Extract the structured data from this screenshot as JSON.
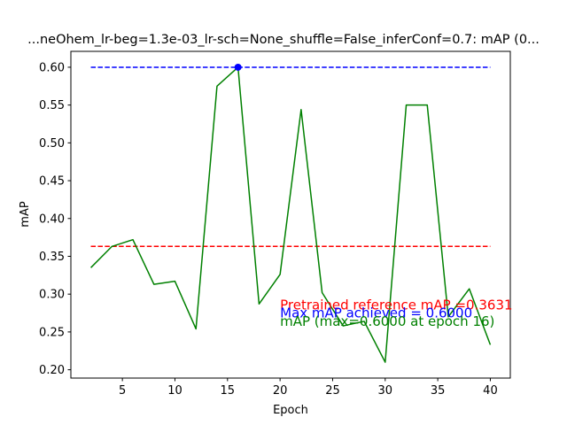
{
  "chart_data": {
    "type": "line",
    "title": "...neOhem_lr-beg=1.3e-03_lr-sch=None_shuffle=False_inferConf=0.7:  mAP (0...",
    "xlabel": "Epoch",
    "ylabel": "mAP",
    "xlim": [
      0.1,
      41.9
    ],
    "ylim": [
      0.189,
      0.621
    ],
    "xticks": [
      5,
      10,
      15,
      20,
      25,
      30,
      35,
      40
    ],
    "yticks": [
      0.2,
      0.25,
      0.3,
      0.35,
      0.4,
      0.45,
      0.5,
      0.55,
      0.6
    ],
    "xtick_labels": [
      "5",
      "10",
      "15",
      "20",
      "25",
      "30",
      "35",
      "40"
    ],
    "ytick_labels": [
      "0.20",
      "0.25",
      "0.30",
      "0.35",
      "0.40",
      "0.45",
      "0.50",
      "0.55",
      "0.60"
    ],
    "grid": false,
    "series": [
      {
        "color": "#008000",
        "style": "solid",
        "x": [
          2,
          4,
          6,
          8,
          10,
          12,
          14,
          16,
          18,
          20,
          22,
          24,
          26,
          28,
          30,
          32,
          34,
          36,
          38,
          40
        ],
        "y": [
          0.335,
          0.363,
          0.372,
          0.313,
          0.317,
          0.254,
          0.575,
          0.6,
          0.287,
          0.326,
          0.544,
          0.302,
          0.258,
          0.264,
          0.21,
          0.55,
          0.55,
          0.27,
          0.307,
          0.233
        ]
      }
    ],
    "reference_lines": [
      {
        "y": 0.3631,
        "x_start": 2,
        "x_end": 40,
        "color": "#ff0000",
        "style": "dashed"
      },
      {
        "y": 0.6,
        "x_start": 2,
        "x_end": 40,
        "color": "#0000ff",
        "style": "dashed"
      }
    ],
    "max_marker": {
      "x": 16,
      "y": 0.6,
      "color": "#0000ff"
    },
    "annotations": [
      {
        "text": "Pretrained reference mAP =0.3631",
        "color": "#ff0000",
        "x": 20,
        "y": 0.2855
      },
      {
        "text": "Max mAP achieved = 0.6000",
        "color": "#0000ff",
        "x": 20,
        "y": 0.275
      },
      {
        "text": "mAP (max=0.6000 at epoch 16)",
        "color": "#008000",
        "x": 20,
        "y": 0.264
      }
    ]
  }
}
